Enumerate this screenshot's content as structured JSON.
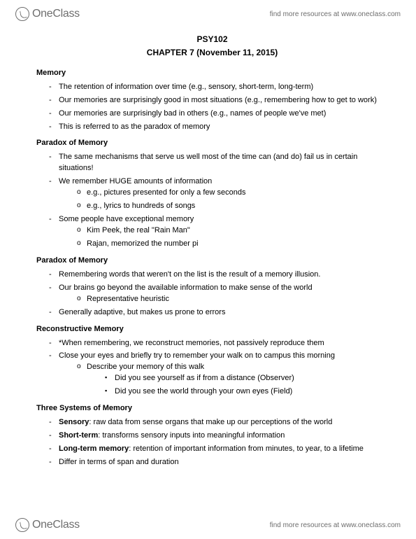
{
  "brand": {
    "name": "OneClass",
    "tagline": "find more resources at www.oneclass.com"
  },
  "title": "PSY102",
  "subtitle": "CHAPTER 7 (November 11, 2015)",
  "sections": [
    {
      "heading": "Memory",
      "items": [
        {
          "t": "The retention of information over time (e.g., sensory, short-term, long-term)"
        },
        {
          "t": "Our memories are surprisingly good in most situations (e.g., remembering how to get to work)"
        },
        {
          "t": "Our memories are surprisingly bad in others (e.g., names of people we've met)"
        },
        {
          "t": "This is referred to as the paradox of memory"
        }
      ]
    },
    {
      "heading": "Paradox of Memory",
      "items": [
        {
          "t": "The same mechanisms that serve us well most of the time can (and do) fail us in certain situations!"
        },
        {
          "t": "We remember HUGE amounts of information",
          "sub": [
            {
              "t": "e.g., pictures presented for only a few seconds"
            },
            {
              "t": "e.g., lyrics to hundreds of songs"
            }
          ]
        },
        {
          "t": "Some people have exceptional memory",
          "sub": [
            {
              "t": "Kim Peek, the real \"Rain Man\""
            },
            {
              "t": "Rajan, memorized the number pi"
            }
          ]
        }
      ]
    },
    {
      "heading": "Paradox of Memory",
      "items": [
        {
          "t": "Remembering words that weren't on the list is the result of a memory illusion."
        },
        {
          "t": "Our brains go beyond the available information to make sense of the world",
          "sub": [
            {
              "t": "Representative heuristic"
            }
          ]
        },
        {
          "t": "Generally adaptive, but makes us prone to errors"
        }
      ]
    },
    {
      "heading": "Reconstructive Memory",
      "items": [
        {
          "t": "*When remembering, we reconstruct memories, not passively reproduce them"
        },
        {
          "t": "Close your eyes and briefly try to remember your walk on to campus this morning",
          "sub": [
            {
              "t": "Describe your memory of this walk",
              "subsub": [
                {
                  "t": "Did you see yourself as if from a distance (Observer)"
                },
                {
                  "t": "Did you see the world through your own eyes (Field)"
                }
              ]
            }
          ]
        }
      ]
    },
    {
      "heading": "Three Systems of Memory",
      "items": [
        {
          "lead": "Sensory",
          "t": ": raw data from sense organs that make up our perceptions of the world"
        },
        {
          "lead": "Short-term",
          "t": ": transforms sensory inputs into meaningful information"
        },
        {
          "lead": "Long-term memory",
          "t": ": retention of important information from minutes, to year, to a lifetime"
        },
        {
          "t": "Differ in terms of span and duration"
        }
      ]
    }
  ]
}
